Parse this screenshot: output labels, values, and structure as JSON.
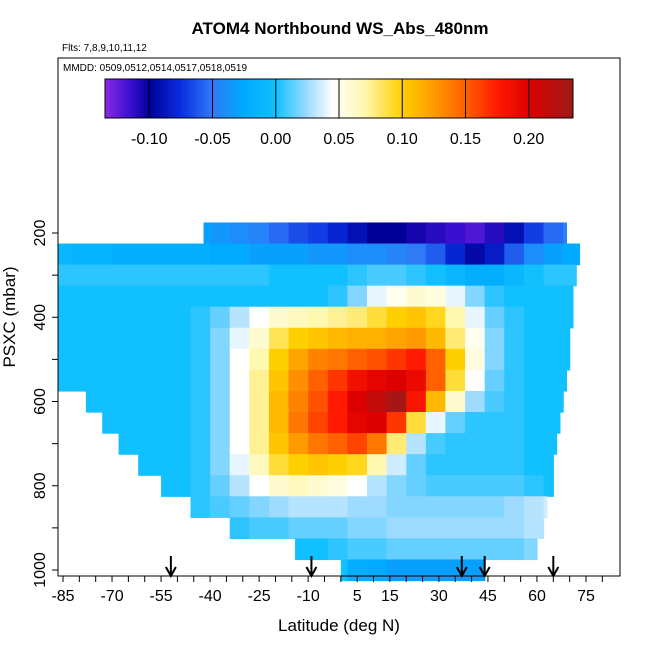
{
  "chart_data": {
    "type": "heatmap",
    "title": "ATOM4 Northbound WS_Abs_480nm",
    "flights_note": "Flts: 7,8,9,10,11,12",
    "dates_note": "MMDD: 0509,0512,0514,0517,0518,0519",
    "xlabel": "Latitude (deg N)",
    "ylabel": "PSXC (mbar)",
    "xlim": [
      -88,
      85
    ],
    "ylim": [
      1020,
      50
    ],
    "x_ticks": [
      -85,
      -70,
      -55,
      -40,
      -25,
      -10,
      5,
      15,
      30,
      45,
      60,
      75
    ],
    "y_ticks": [
      200,
      400,
      600,
      800,
      1000
    ],
    "colorbar": {
      "range": [
        -0.135,
        0.235
      ],
      "ticks": [
        -0.1,
        -0.05,
        0.0,
        0.05,
        0.1,
        0.15,
        0.2
      ],
      "tick_labels": [
        "-0.10",
        "-0.05",
        "0.00",
        "0.05",
        "0.10",
        "0.15",
        "0.20"
      ],
      "colors": [
        {
          "v": -0.135,
          "c": "#8a2be2"
        },
        {
          "v": -0.115,
          "c": "#3a10d0"
        },
        {
          "v": -0.1,
          "c": "#000099"
        },
        {
          "v": -0.075,
          "c": "#0a2ee0"
        },
        {
          "v": -0.05,
          "c": "#2f7af7"
        },
        {
          "v": -0.025,
          "c": "#00aaff"
        },
        {
          "v": 0.0,
          "c": "#10c0ff"
        },
        {
          "v": 0.025,
          "c": "#9edbff"
        },
        {
          "v": 0.045,
          "c": "#ffffff"
        },
        {
          "v": 0.07,
          "c": "#fff8b0"
        },
        {
          "v": 0.1,
          "c": "#ffd000"
        },
        {
          "v": 0.125,
          "c": "#ff9a00"
        },
        {
          "v": 0.15,
          "c": "#ff6000"
        },
        {
          "v": 0.175,
          "c": "#ff1a00"
        },
        {
          "v": 0.2,
          "c": "#dd0000"
        },
        {
          "v": 0.235,
          "c": "#9e1a1a"
        }
      ]
    },
    "arrows_latitude": [
      -52,
      -9,
      37,
      44,
      65
    ],
    "pressure_levels": [
      200,
      250,
      300,
      350,
      400,
      450,
      500,
      550,
      600,
      650,
      700,
      750,
      800,
      850,
      900,
      950,
      1000
    ],
    "level_extents": [
      {
        "p": 200,
        "lat_min": -42,
        "lat_max": 69
      },
      {
        "p": 250,
        "lat_min": -88,
        "lat_max": 73
      },
      {
        "p": 300,
        "lat_min": -88,
        "lat_max": 72
      },
      {
        "p": 350,
        "lat_min": -88,
        "lat_max": 71
      },
      {
        "p": 400,
        "lat_min": -88,
        "lat_max": 71
      },
      {
        "p": 450,
        "lat_min": -88,
        "lat_max": 70
      },
      {
        "p": 500,
        "lat_min": -88,
        "lat_max": 70
      },
      {
        "p": 550,
        "lat_min": -88,
        "lat_max": 69
      },
      {
        "p": 600,
        "lat_min": -78,
        "lat_max": 68
      },
      {
        "p": 650,
        "lat_min": -73,
        "lat_max": 67
      },
      {
        "p": 700,
        "lat_min": -68,
        "lat_max": 66
      },
      {
        "p": 750,
        "lat_min": -62,
        "lat_max": 65
      },
      {
        "p": 800,
        "lat_min": -55,
        "lat_max": 65
      },
      {
        "p": 850,
        "lat_min": -46,
        "lat_max": 63
      },
      {
        "p": 900,
        "lat_min": -34,
        "lat_max": 62
      },
      {
        "p": 950,
        "lat_min": -14,
        "lat_max": 60
      },
      {
        "p": 1000,
        "lat_min": 0,
        "lat_max": 44
      }
    ],
    "latitude_bins": [
      -88,
      -82,
      -76,
      -70,
      -64,
      -58,
      -52,
      -46,
      -40,
      -34,
      -28,
      -22,
      -16,
      -10,
      -4,
      2,
      8,
      14,
      20,
      26,
      32,
      38,
      44,
      50,
      56,
      62,
      68,
      74
    ],
    "values": [
      [
        -0.03,
        -0.03,
        -0.03,
        -0.03,
        -0.03,
        -0.03,
        -0.03,
        -0.03,
        -0.035,
        -0.04,
        -0.045,
        -0.055,
        -0.065,
        -0.07,
        -0.08,
        -0.09,
        -0.1,
        -0.1,
        -0.105,
        -0.11,
        -0.115,
        -0.12,
        -0.11,
        -0.09,
        -0.07,
        -0.055,
        -0.045,
        -0.04
      ],
      [
        -0.01,
        -0.015,
        -0.015,
        -0.02,
        -0.02,
        -0.02,
        -0.02,
        -0.02,
        -0.025,
        -0.025,
        -0.03,
        -0.03,
        -0.03,
        -0.035,
        -0.035,
        -0.04,
        -0.04,
        -0.045,
        -0.05,
        -0.06,
        -0.08,
        -0.095,
        -0.085,
        -0.06,
        -0.04,
        -0.03,
        -0.025,
        -0.02
      ],
      [
        0.005,
        0.005,
        0.005,
        0.005,
        0.005,
        0.005,
        0.005,
        0.005,
        0.005,
        0.005,
        0.005,
        0.0,
        0.0,
        0.0,
        0.0,
        0.005,
        0.01,
        0.01,
        0.005,
        0.0,
        -0.01,
        -0.02,
        -0.02,
        -0.01,
        0.0,
        0.005,
        0.005,
        0.005
      ],
      [
        0.0,
        0.0,
        0.0,
        0.0,
        0.0,
        0.0,
        0.0,
        0.0,
        0.0,
        0.0,
        0.0,
        0.0,
        0.0,
        0.0,
        0.005,
        0.02,
        0.04,
        0.05,
        0.06,
        0.055,
        0.04,
        0.02,
        0.005,
        0.0,
        0.0,
        0.0,
        0.0,
        0.0
      ],
      [
        0.0,
        0.0,
        0.0,
        0.0,
        0.0,
        0.0,
        0.0,
        0.005,
        0.015,
        0.03,
        0.045,
        0.06,
        0.065,
        0.07,
        0.075,
        0.08,
        0.09,
        0.1,
        0.105,
        0.095,
        0.07,
        0.04,
        0.015,
        0.005,
        0.0,
        0.0,
        0.0,
        0.0
      ],
      [
        0.0,
        0.0,
        0.0,
        0.0,
        0.0,
        0.0,
        0.0,
        0.005,
        0.02,
        0.04,
        0.06,
        0.085,
        0.1,
        0.105,
        0.11,
        0.115,
        0.115,
        0.12,
        0.125,
        0.11,
        0.08,
        0.05,
        0.02,
        0.005,
        0.0,
        0.0,
        0.0,
        0.0
      ],
      [
        0.0,
        0.0,
        0.0,
        0.0,
        0.0,
        0.0,
        0.0,
        0.005,
        0.02,
        0.045,
        0.07,
        0.1,
        0.12,
        0.135,
        0.14,
        0.15,
        0.155,
        0.165,
        0.175,
        0.15,
        0.1,
        0.055,
        0.02,
        0.005,
        0.0,
        0.0,
        0.0,
        0.0
      ],
      [
        0.0,
        0.0,
        0.0,
        0.0,
        0.0,
        0.0,
        0.0,
        0.005,
        0.02,
        0.045,
        0.075,
        0.105,
        0.13,
        0.15,
        0.165,
        0.185,
        0.195,
        0.2,
        0.19,
        0.15,
        0.09,
        0.045,
        0.015,
        0.005,
        0.0,
        0.0,
        0.0,
        0.0
      ],
      [
        0.0,
        0.0,
        0.0,
        0.0,
        0.0,
        0.0,
        0.0,
        0.005,
        0.02,
        0.045,
        0.075,
        0.11,
        0.135,
        0.155,
        0.175,
        0.2,
        0.215,
        0.23,
        0.18,
        0.11,
        0.06,
        0.025,
        0.01,
        0.005,
        0.0,
        0.0,
        0.0,
        0.0
      ],
      [
        0.0,
        0.0,
        0.0,
        0.0,
        0.0,
        0.0,
        0.0,
        0.005,
        0.02,
        0.045,
        0.075,
        0.11,
        0.14,
        0.16,
        0.175,
        0.195,
        0.2,
        0.165,
        0.09,
        0.04,
        0.015,
        0.005,
        0.005,
        0.005,
        0.0,
        0.0,
        0.0,
        0.0
      ],
      [
        0.0,
        0.0,
        0.0,
        0.0,
        0.0,
        0.0,
        0.0,
        0.005,
        0.02,
        0.045,
        0.075,
        0.105,
        0.125,
        0.14,
        0.15,
        0.16,
        0.14,
        0.08,
        0.03,
        0.01,
        0.005,
        0.005,
        0.005,
        0.005,
        0.0,
        0.0,
        0.0,
        0.0
      ],
      [
        0.0,
        0.0,
        0.0,
        0.0,
        0.0,
        0.0,
        0.0,
        0.005,
        0.02,
        0.04,
        0.065,
        0.09,
        0.1,
        0.105,
        0.1,
        0.095,
        0.07,
        0.035,
        0.015,
        0.005,
        0.005,
        0.005,
        0.005,
        0.005,
        0.0,
        0.0,
        0.0,
        0.0
      ],
      [
        0.0,
        0.0,
        0.0,
        0.0,
        0.0,
        0.0,
        0.0,
        0.005,
        0.015,
        0.03,
        0.045,
        0.06,
        0.065,
        0.06,
        0.055,
        0.045,
        0.03,
        0.02,
        0.015,
        0.01,
        0.01,
        0.01,
        0.01,
        0.01,
        0.005,
        0.0,
        0.0,
        0.0
      ],
      [
        0.0,
        0.0,
        0.0,
        0.0,
        0.0,
        0.0,
        0.0,
        0.005,
        0.01,
        0.015,
        0.02,
        0.025,
        0.03,
        0.03,
        0.03,
        0.025,
        0.025,
        0.02,
        0.02,
        0.02,
        0.02,
        0.02,
        0.02,
        0.025,
        0.03,
        0.035,
        0.0,
        0.0
      ],
      [
        0.0,
        0.0,
        0.0,
        0.0,
        0.0,
        0.0,
        0.0,
        0.0,
        0.005,
        0.005,
        0.01,
        0.01,
        0.015,
        0.015,
        0.015,
        0.02,
        0.02,
        0.025,
        0.025,
        0.025,
        0.025,
        0.025,
        0.025,
        0.025,
        0.03,
        0.03,
        0.0,
        0.0
      ],
      [
        0.0,
        0.0,
        0.0,
        0.0,
        0.0,
        0.0,
        0.0,
        0.0,
        0.0,
        0.0,
        0.0,
        0.0,
        0.0,
        0.0,
        0.005,
        0.01,
        0.01,
        0.015,
        0.015,
        0.015,
        0.015,
        0.015,
        0.015,
        0.015,
        0.02,
        0.02,
        0.0,
        0.0
      ],
      [
        0.0,
        0.0,
        0.0,
        0.0,
        0.0,
        0.0,
        0.0,
        0.0,
        0.0,
        0.0,
        0.0,
        0.0,
        0.0,
        0.0,
        0.0,
        -0.02,
        -0.025,
        -0.03,
        -0.03,
        -0.03,
        -0.03,
        -0.03,
        -0.03,
        0.0,
        0.0,
        0.0,
        0.0,
        0.0
      ]
    ]
  }
}
